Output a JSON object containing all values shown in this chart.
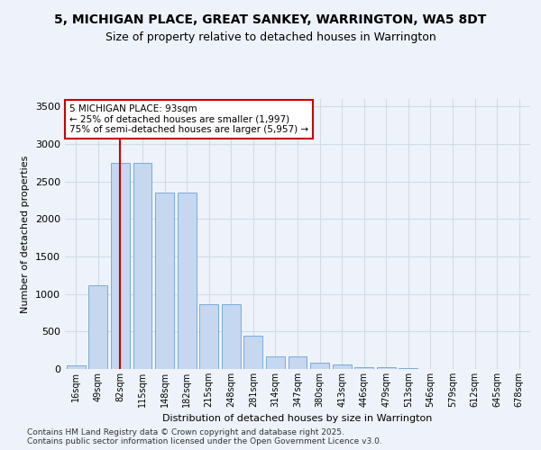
{
  "title_line1": "5, MICHIGAN PLACE, GREAT SANKEY, WARRINGTON, WA5 8DT",
  "title_line2": "Size of property relative to detached houses in Warrington",
  "xlabel": "Distribution of detached houses by size in Warrington",
  "ylabel": "Number of detached properties",
  "categories": [
    "16sqm",
    "49sqm",
    "82sqm",
    "115sqm",
    "148sqm",
    "182sqm",
    "215sqm",
    "248sqm",
    "281sqm",
    "314sqm",
    "347sqm",
    "380sqm",
    "413sqm",
    "446sqm",
    "479sqm",
    "513sqm",
    "546sqm",
    "579sqm",
    "612sqm",
    "645sqm",
    "678sqm"
  ],
  "values": [
    50,
    1120,
    2750,
    2750,
    2350,
    2350,
    870,
    870,
    440,
    165,
    165,
    85,
    60,
    30,
    20,
    10,
    5,
    3,
    0,
    0,
    0
  ],
  "bar_color": "#c5d8f0",
  "bar_edge_color": "#7aabda",
  "bg_color": "#eef3fb",
  "grid_color": "#d0dce8",
  "vline_color": "#cc0000",
  "vline_x_index": 2,
  "annotation_text": "5 MICHIGAN PLACE: 93sqm\n← 25% of detached houses are smaller (1,997)\n75% of semi-detached houses are larger (5,957) →",
  "annotation_box_facecolor": "white",
  "annotation_box_edgecolor": "#cc0000",
  "ylim_max": 3600,
  "yticks": [
    0,
    500,
    1000,
    1500,
    2000,
    2500,
    3000,
    3500
  ],
  "footer_line1": "Contains HM Land Registry data © Crown copyright and database right 2025.",
  "footer_line2": "Contains public sector information licensed under the Open Government Licence v3.0."
}
